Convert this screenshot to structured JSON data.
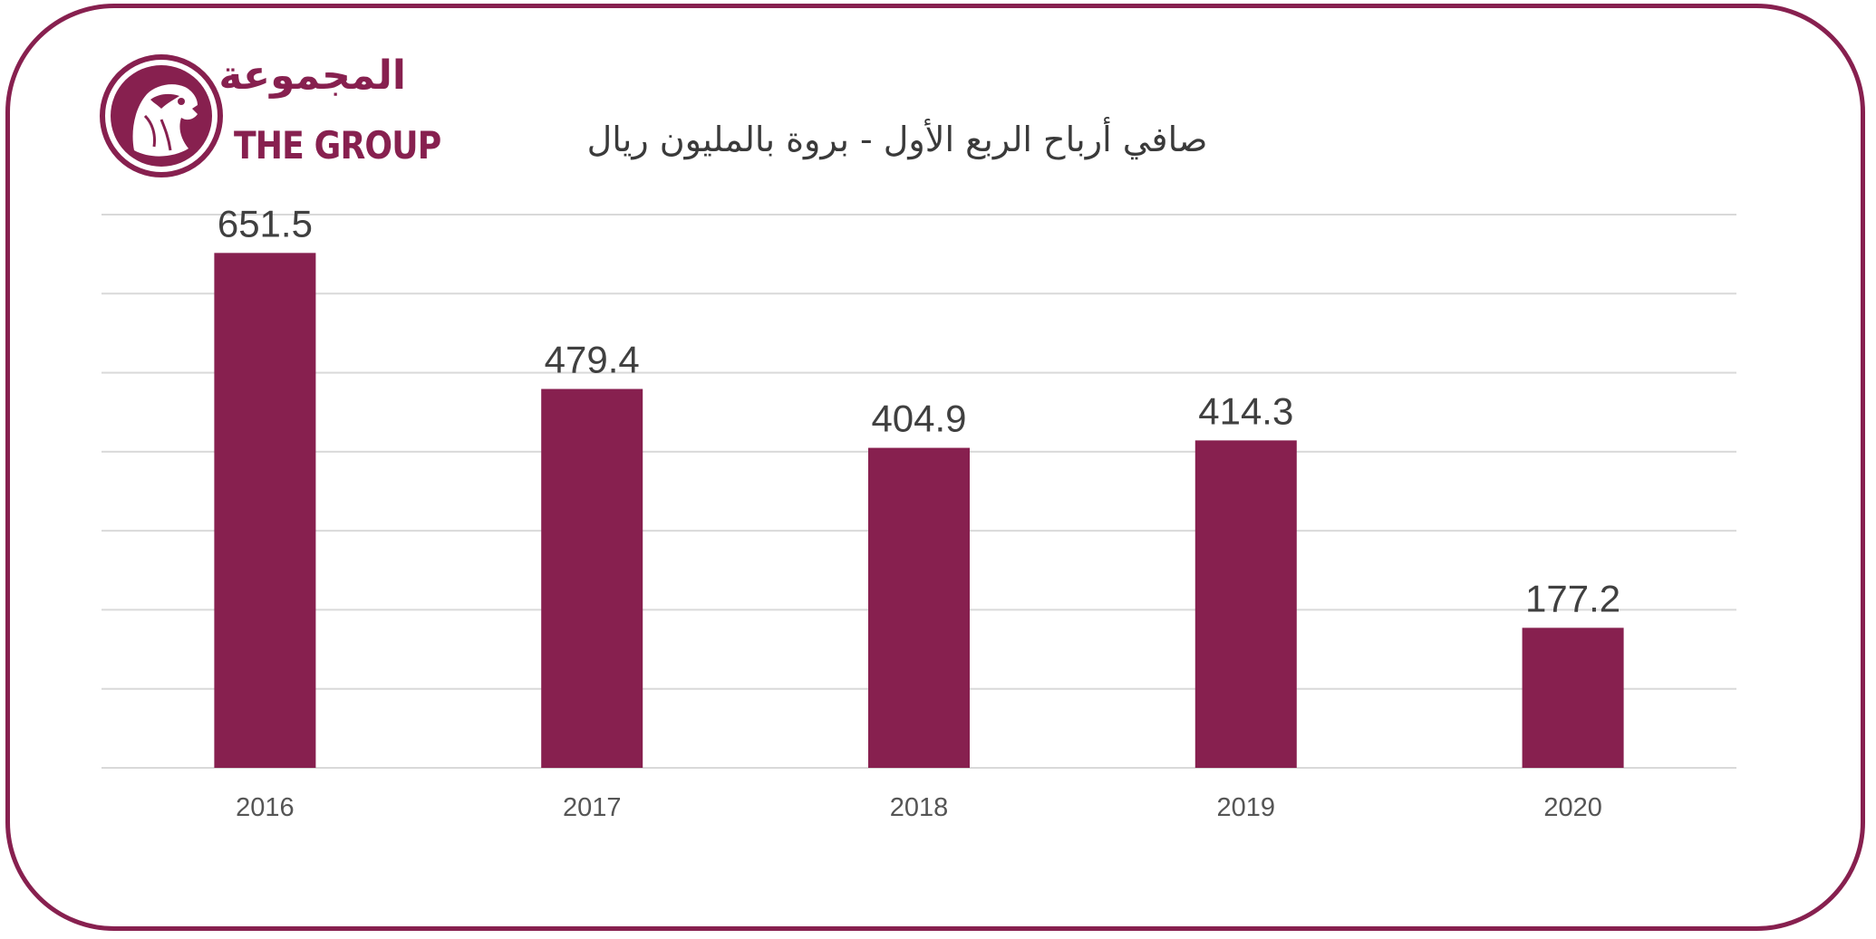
{
  "logo": {
    "arabic": "المجموعة",
    "english": "THE GROUP",
    "icon": "falcon-emblem-icon"
  },
  "colors": {
    "bar": "#87204f",
    "frame": "#87204f",
    "grid": "#d9d9d9",
    "text": "#404040"
  },
  "chart_data": {
    "type": "bar",
    "title": "صافي أرباح الربع الأول - بروة بالمليون ريال",
    "xlabel": "",
    "ylabel": "",
    "categories": [
      "2016",
      "2017",
      "2018",
      "2019",
      "2020"
    ],
    "values": [
      651.5,
      479.4,
      404.9,
      414.3,
      177.2
    ],
    "data_labels": [
      "651.5",
      "479.4",
      "404.9",
      "414.3",
      "177.2"
    ],
    "ylim": [
      0,
      700
    ],
    "grid": true,
    "y_tick_labels_shown": false,
    "legend": "none"
  }
}
